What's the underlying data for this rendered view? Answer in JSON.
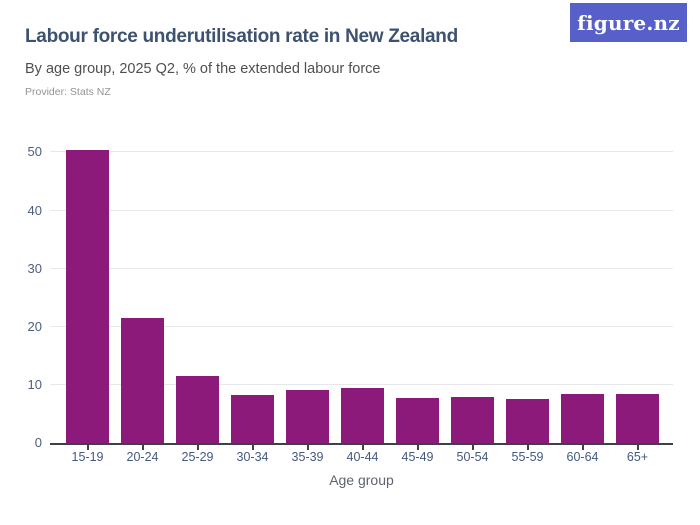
{
  "header": {
    "provider": "Provider: Stats NZ",
    "logo_text": "figure.nz"
  },
  "chart_data": {
    "type": "bar",
    "title": "Labour force underutilisation rate in New Zealand",
    "subtitle": "By age group, 2025 Q2, % of the extended labour force",
    "categories": [
      "15-19",
      "20-24",
      "25-29",
      "30-34",
      "35-39",
      "40-44",
      "45-49",
      "50-54",
      "55-59",
      "60-64",
      "65+"
    ],
    "values": [
      50.5,
      21.5,
      11.6,
      8.2,
      9.2,
      9.4,
      7.7,
      8.0,
      7.6,
      8.5,
      8.4
    ],
    "xlabel": "Age group",
    "ylabel": "",
    "ylim": [
      0,
      53
    ],
    "yticks": [
      0,
      10,
      20,
      30,
      40,
      50
    ],
    "grid": true,
    "legend": false
  },
  "colors": {
    "background": "#ffffff",
    "title": "#3d5170",
    "subtitle": "#4f4f4f",
    "provider": "#949494",
    "logo_bg": "#5760c8",
    "logo_text": "#ffffff",
    "bar": "#8b1a7b",
    "gridline": "#e8e8ec",
    "axis_line": "#3f3f47",
    "y_tick_label": "#4d5f7c",
    "x_tick_label": "#44597e",
    "x_axis_title": "#5d6470"
  }
}
